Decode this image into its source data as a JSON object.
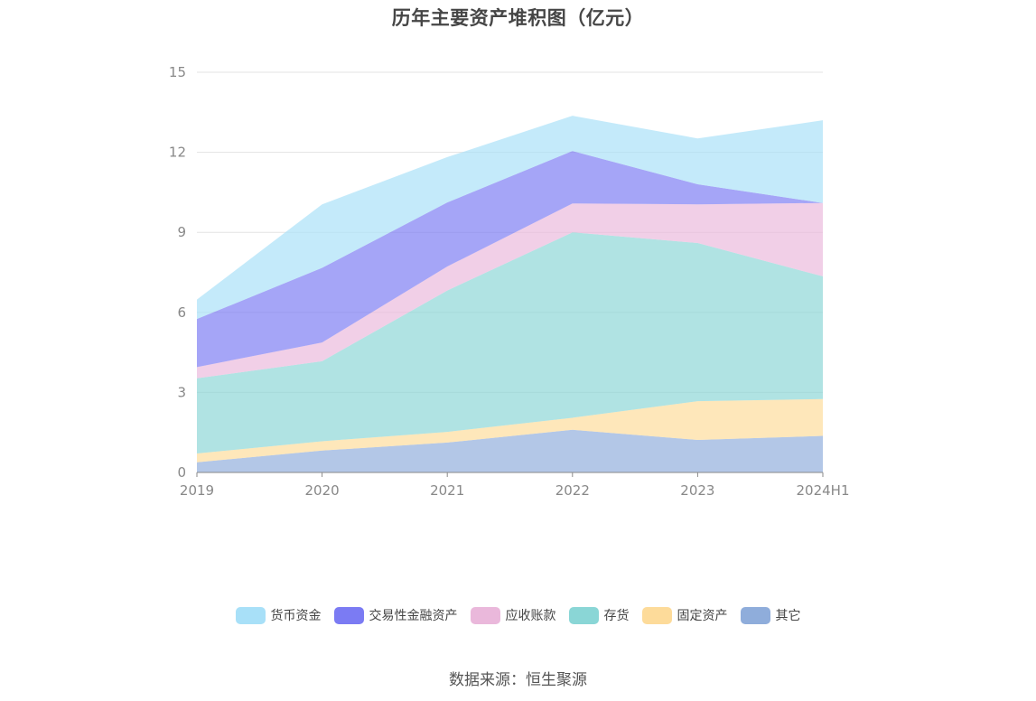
{
  "chart_data": {
    "type": "area",
    "stacked": true,
    "title": "历年主要资产堆积图（亿元）",
    "x": [
      "2019",
      "2020",
      "2021",
      "2022",
      "2023",
      "2024H1"
    ],
    "ylim": [
      0,
      15
    ],
    "yticks": [
      "0",
      "3",
      "6",
      "9",
      "12",
      "15"
    ],
    "grid": true,
    "legend_position": "bottom",
    "series": [
      {
        "name": "其它",
        "color": "#8FADDB",
        "values": [
          0.38,
          0.82,
          1.12,
          1.6,
          1.22,
          1.37
        ]
      },
      {
        "name": "固定资产",
        "color": "#FDDB9A",
        "values": [
          0.33,
          0.35,
          0.4,
          0.45,
          1.45,
          1.38
        ]
      },
      {
        "name": "存货",
        "color": "#8AD6D6",
        "values": [
          2.82,
          3.0,
          5.3,
          6.95,
          5.93,
          4.6
        ]
      },
      {
        "name": "应收账款",
        "color": "#EAB8DB",
        "values": [
          0.42,
          0.7,
          0.9,
          1.08,
          1.45,
          2.75
        ]
      },
      {
        "name": "交易性金融资产",
        "color": "#7B7BF3",
        "values": [
          1.8,
          2.8,
          2.4,
          1.97,
          0.75,
          0.0
        ]
      },
      {
        "name": "货币资金",
        "color": "#A8E0F8",
        "values": [
          0.73,
          2.38,
          1.7,
          1.32,
          1.72,
          3.1
        ]
      }
    ]
  },
  "legend_order": [
    "货币资金",
    "交易性金融资产",
    "应收账款",
    "存货",
    "固定资产",
    "其它"
  ],
  "source": "数据来源：恒生聚源"
}
